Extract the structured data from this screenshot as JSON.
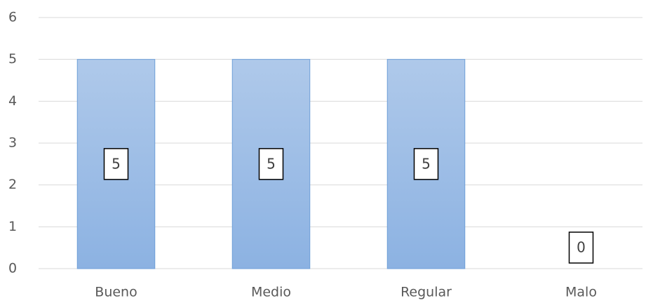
{
  "chart_data": {
    "type": "bar",
    "categories": [
      "Bueno",
      "Medio",
      "Regular",
      "Malo"
    ],
    "values": [
      5,
      5,
      5,
      0
    ],
    "color": "#9dbde6",
    "ylim": [
      0,
      6
    ],
    "yticks": [
      0,
      1,
      2,
      3,
      4,
      5,
      6
    ],
    "grid": true
  }
}
